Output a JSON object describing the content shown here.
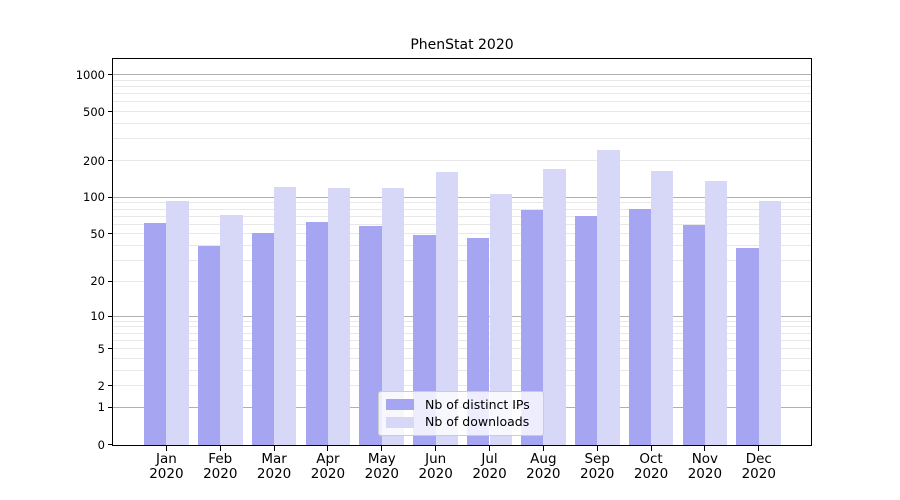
{
  "chart_data": {
    "type": "bar",
    "title": "PhenStat 2020",
    "categories": [
      "Jan",
      "Feb",
      "Mar",
      "Apr",
      "May",
      "Jun",
      "Jul",
      "Aug",
      "Sep",
      "Oct",
      "Nov",
      "Dec"
    ],
    "category_year": "2020",
    "series": [
      {
        "name": "Nb of distinct IPs",
        "color": "#a5a5f2",
        "values": [
          62,
          40,
          51,
          63,
          58,
          49,
          46,
          79,
          70,
          80,
          59,
          38
        ]
      },
      {
        "name": "Nb of downloads",
        "color": "#d7d7f7",
        "values": [
          94,
          72,
          121,
          119,
          119,
          160,
          107,
          170,
          245,
          163,
          137,
          94
        ]
      }
    ],
    "y_axis": {
      "scale": "log10(1+v)",
      "tick_values": [
        0,
        1,
        2,
        5,
        10,
        20,
        50,
        100,
        200,
        500,
        1000
      ],
      "major_grid_values": [
        1,
        10,
        100,
        1000
      ],
      "minor_grid_bases": [
        1,
        10,
        100
      ],
      "ylim_top_approx": 1320
    },
    "legend": {
      "position": "inside-bottom-center",
      "entries": [
        "Nb of distinct IPs",
        "Nb of downloads"
      ]
    },
    "grid": true
  },
  "colors": {
    "background": "#ffffff",
    "axis": "#000000",
    "major_grid": "#b0b0b0",
    "minor_grid": "#e8e8e8",
    "legend_border": "#cccccc",
    "text": "#000000"
  }
}
